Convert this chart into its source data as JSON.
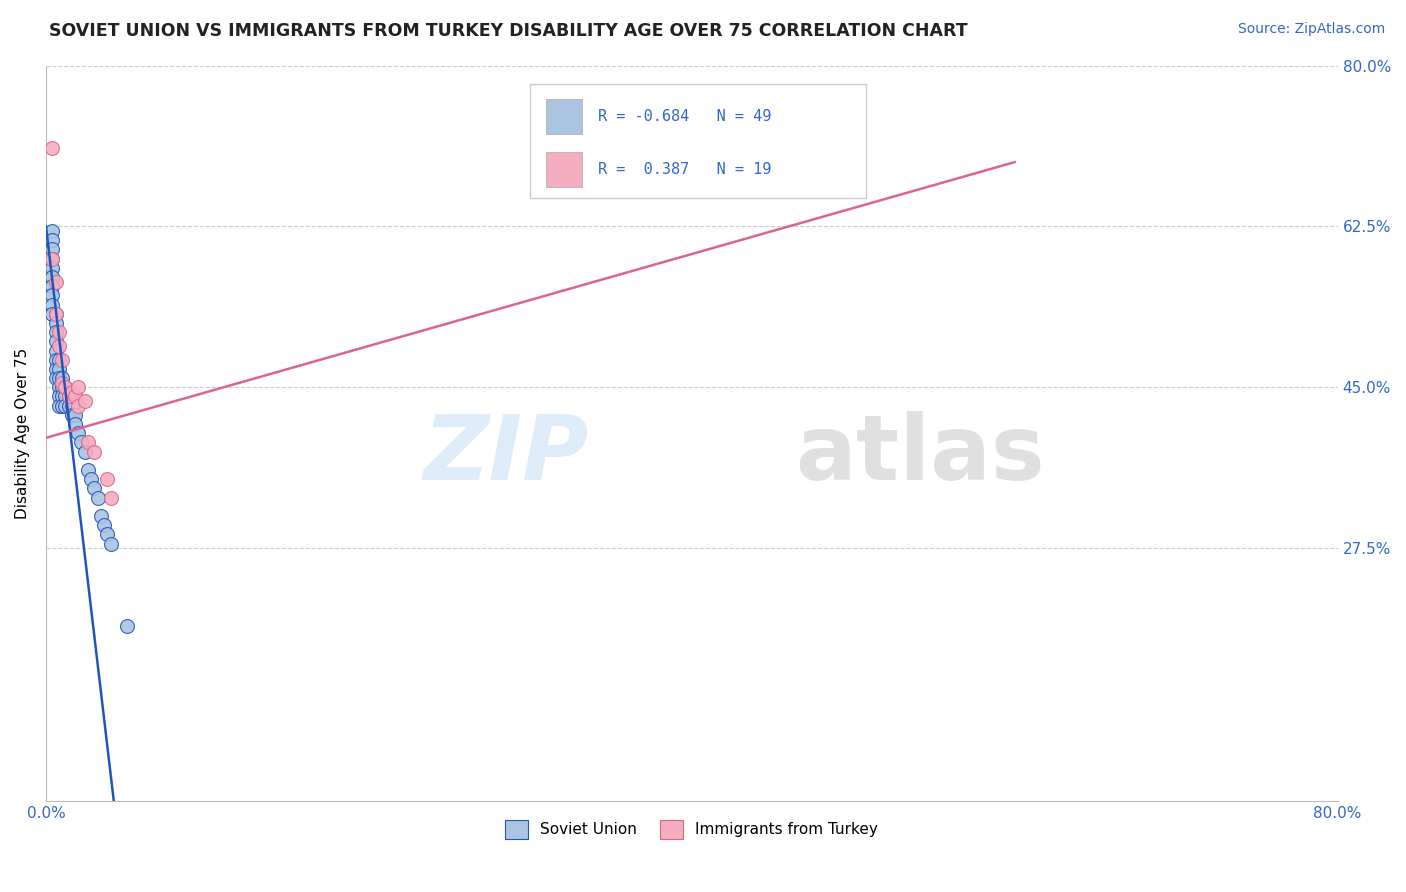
{
  "title": "SOVIET UNION VS IMMIGRANTS FROM TURKEY DISABILITY AGE OVER 75 CORRELATION CHART",
  "source": "Source: ZipAtlas.com",
  "ylabel": "Disability Age Over 75",
  "xmin": 0.0,
  "xmax": 0.8,
  "ymin": 0.0,
  "ymax": 0.8,
  "ytick_vals": [
    0.275,
    0.45,
    0.625,
    0.8
  ],
  "ytick_labels": [
    "27.5%",
    "45.0%",
    "62.5%",
    "80.0%"
  ],
  "xtick_vals": [
    0.0,
    0.8
  ],
  "xtick_labels": [
    "0.0%",
    "80.0%"
  ],
  "soviet_color": "#aac4e2",
  "turkey_color": "#f5adc0",
  "soviet_line_color": "#2255bb",
  "turkey_line_color": "#dd6688",
  "soviet_x": [
    0.004,
    0.004,
    0.004,
    0.004,
    0.004,
    0.004,
    0.004,
    0.004,
    0.004,
    0.004,
    0.006,
    0.006,
    0.006,
    0.006,
    0.006,
    0.006,
    0.006,
    0.006,
    0.008,
    0.008,
    0.008,
    0.008,
    0.008,
    0.008,
    0.01,
    0.01,
    0.01,
    0.01,
    0.012,
    0.012,
    0.012,
    0.014,
    0.014,
    0.016,
    0.016,
    0.018,
    0.018,
    0.02,
    0.022,
    0.024,
    0.026,
    0.028,
    0.03,
    0.032,
    0.034,
    0.036,
    0.038,
    0.04,
    0.05
  ],
  "soviet_y": [
    0.62,
    0.61,
    0.6,
    0.59,
    0.58,
    0.57,
    0.56,
    0.55,
    0.54,
    0.53,
    0.53,
    0.52,
    0.51,
    0.5,
    0.49,
    0.48,
    0.47,
    0.46,
    0.48,
    0.47,
    0.46,
    0.45,
    0.44,
    0.43,
    0.46,
    0.45,
    0.44,
    0.43,
    0.45,
    0.44,
    0.43,
    0.44,
    0.43,
    0.43,
    0.42,
    0.42,
    0.41,
    0.4,
    0.39,
    0.38,
    0.36,
    0.35,
    0.34,
    0.33,
    0.31,
    0.3,
    0.29,
    0.28,
    0.19
  ],
  "turkey_x": [
    0.004,
    0.004,
    0.006,
    0.006,
    0.008,
    0.008,
    0.01,
    0.01,
    0.012,
    0.014,
    0.016,
    0.018,
    0.02,
    0.02,
    0.024,
    0.026,
    0.03,
    0.038,
    0.04
  ],
  "turkey_y": [
    0.71,
    0.59,
    0.565,
    0.53,
    0.51,
    0.495,
    0.48,
    0.455,
    0.45,
    0.44,
    0.445,
    0.44,
    0.45,
    0.43,
    0.435,
    0.39,
    0.38,
    0.35,
    0.33
  ],
  "soviet_trend": [
    0.0,
    0.8,
    0.62,
    -0.3
  ],
  "turkey_trend_x": [
    0.0,
    0.6
  ],
  "turkey_trend_y": [
    0.395,
    0.7
  ]
}
